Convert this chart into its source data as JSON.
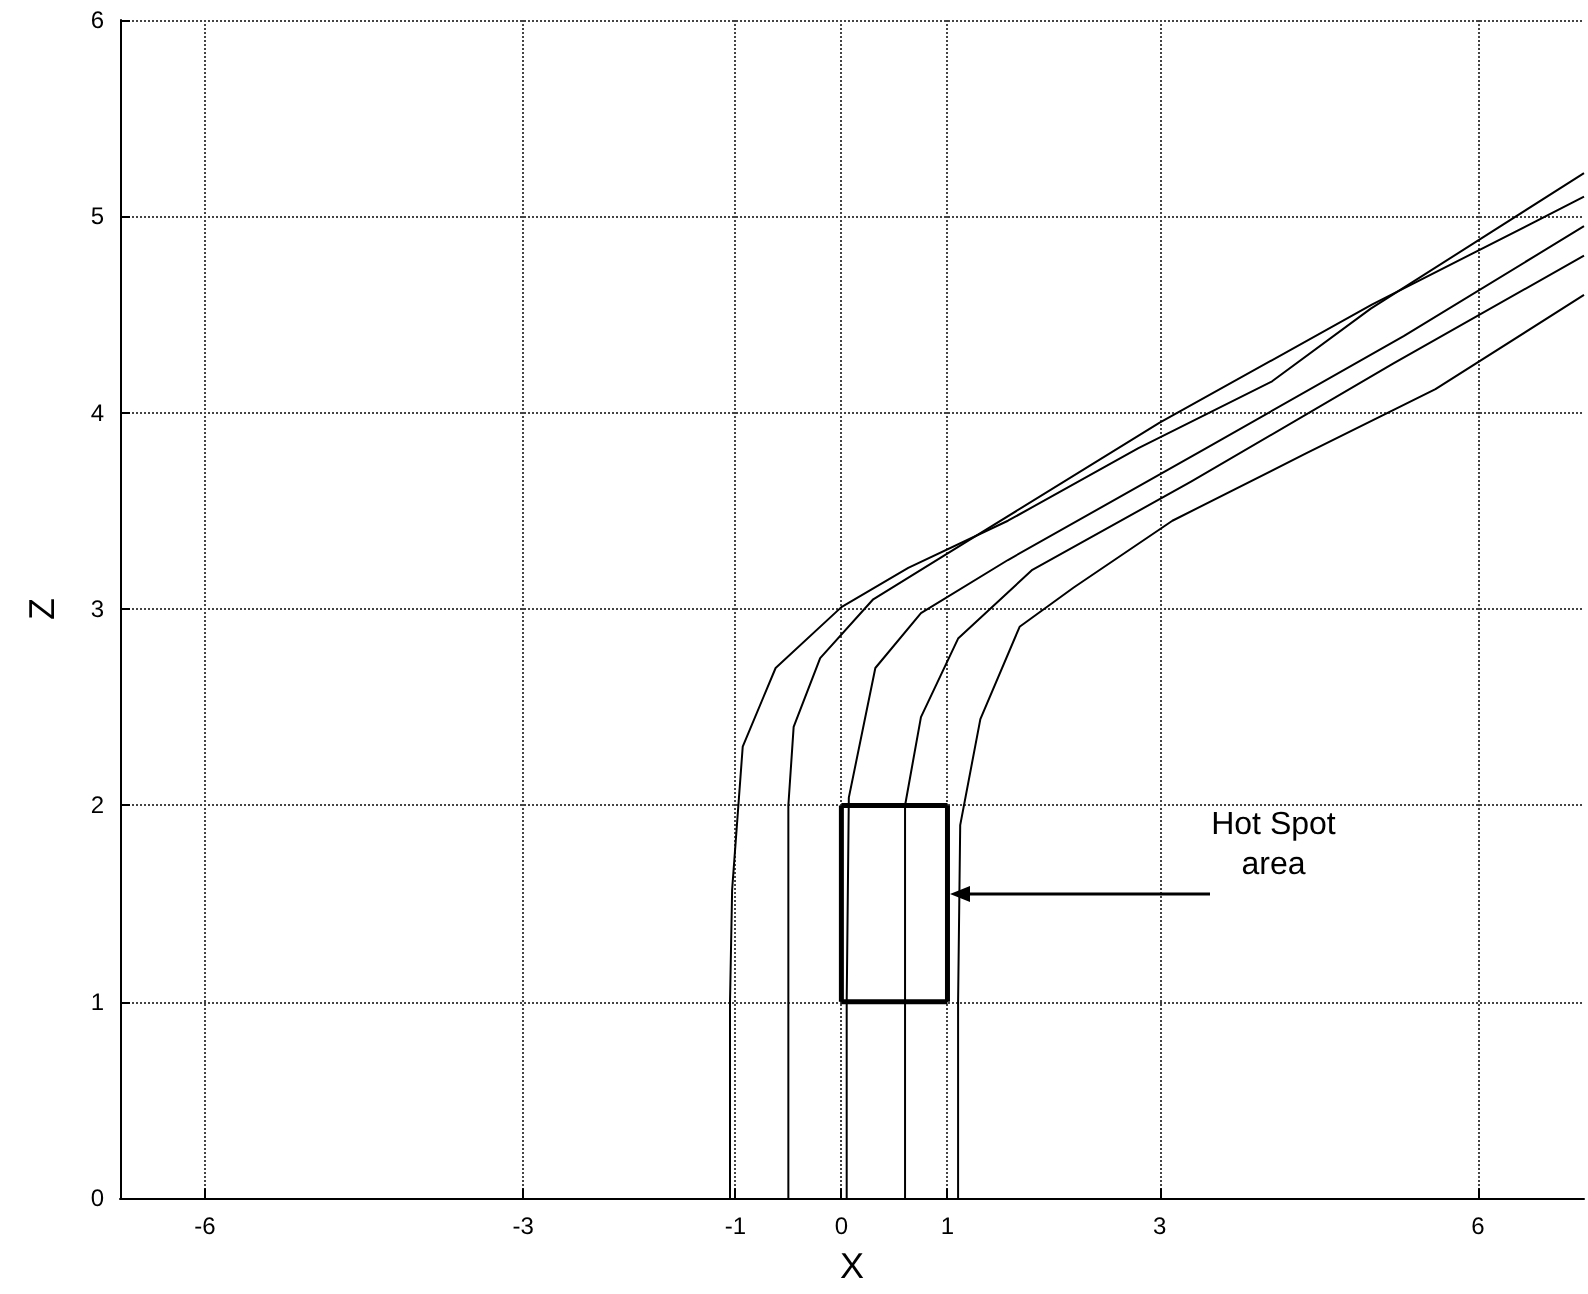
{
  "chart_data": {
    "type": "line",
    "xlabel": "X",
    "ylabel": "Z",
    "xlim": [
      -6.8,
      7
    ],
    "ylim": [
      0,
      6
    ],
    "xticks": [
      -6,
      -3,
      -1,
      0,
      1,
      3,
      6
    ],
    "yticks": [
      0,
      1,
      2,
      3,
      4,
      5,
      6
    ],
    "grid": true,
    "marker": "none",
    "line_style": "solid",
    "series": [
      {
        "color": "#000000",
        "x": [
          -1.05,
          -1.05,
          -1.03,
          -0.93,
          -0.62,
          0,
          0.63,
          1.57,
          2.8,
          4.06,
          4.99,
          7
        ],
        "values": [
          0,
          1,
          1.57,
          2.3,
          2.7,
          3.01,
          3.21,
          3.45,
          3.82,
          4.16,
          4.53,
          5.22
        ]
      },
      {
        "color": "#000000",
        "x": [
          -0.5,
          -0.5,
          -0.45,
          -0.2,
          0.3,
          1.2,
          3,
          5,
          7
        ],
        "values": [
          0,
          2,
          2.4,
          2.75,
          3.05,
          3.35,
          3.95,
          4.55,
          5.1
        ]
      },
      {
        "color": "#000000",
        "x": [
          0.05,
          0.05,
          0.07,
          0.32,
          0.75,
          1.57,
          3.44,
          5.3,
          7
        ],
        "values": [
          0,
          1,
          2.04,
          2.7,
          2.98,
          3.25,
          3.82,
          4.39,
          4.95
        ]
      },
      {
        "color": "#000000",
        "x": [
          0.6,
          0.6,
          0.75,
          1.1,
          1.8,
          3.3,
          5.2,
          7
        ],
        "values": [
          0,
          2,
          2.45,
          2.85,
          3.2,
          3.65,
          4.25,
          4.8
        ]
      },
      {
        "color": "#000000",
        "x": [
          1.1,
          1.1,
          1.12,
          1.31,
          1.68,
          2.19,
          3.12,
          4.37,
          5.6,
          7
        ],
        "values": [
          0,
          1,
          1.9,
          2.44,
          2.91,
          3.11,
          3.45,
          3.79,
          4.12,
          4.6
        ]
      },
      {
        "color": "#000000",
        "x": [
          0,
          1
        ],
        "values": [
          1,
          1
        ]
      },
      {
        "color": "#000000",
        "x": [
          0,
          1
        ],
        "values": [
          2,
          2
        ]
      },
      {
        "color": "#000000",
        "x": [
          0,
          0
        ],
        "values": [
          1,
          2
        ]
      },
      {
        "color": "#000000",
        "x": [
          1,
          1
        ],
        "values": [
          1,
          2
        ]
      }
    ],
    "annotations": [
      {
        "text": "Hot Spot area",
        "x": 1,
        "y": 1.55
      }
    ]
  }
}
